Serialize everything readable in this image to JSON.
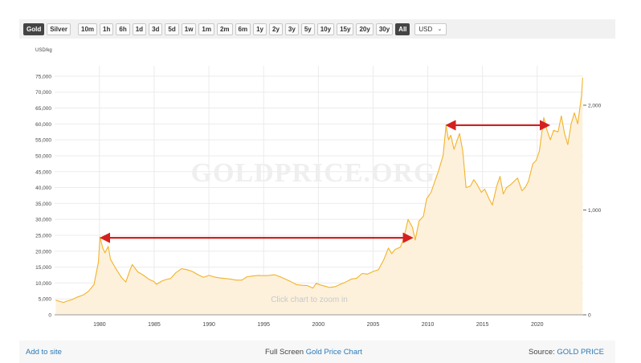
{
  "toolbar": {
    "metals": [
      {
        "label": "Gold",
        "active": true
      },
      {
        "label": "Silver",
        "active": false
      }
    ],
    "ranges": [
      {
        "label": "10m",
        "active": false
      },
      {
        "label": "1h",
        "active": false
      },
      {
        "label": "6h",
        "active": false
      },
      {
        "label": "1d",
        "active": false
      },
      {
        "label": "3d",
        "active": false
      },
      {
        "label": "5d",
        "active": false
      },
      {
        "label": "1w",
        "active": false
      },
      {
        "label": "1m",
        "active": false
      },
      {
        "label": "2m",
        "active": false
      },
      {
        "label": "6m",
        "active": false
      },
      {
        "label": "1y",
        "active": false
      },
      {
        "label": "2y",
        "active": false
      },
      {
        "label": "3y",
        "active": false
      },
      {
        "label": "5y",
        "active": false
      },
      {
        "label": "10y",
        "active": false
      },
      {
        "label": "15y",
        "active": false
      },
      {
        "label": "20y",
        "active": false
      },
      {
        "label": "30y",
        "active": false
      },
      {
        "label": "All",
        "active": true
      }
    ],
    "currency": "USD"
  },
  "chart_data": {
    "type": "area",
    "title": "",
    "ylabel": "USD/kg",
    "xlim": [
      1975.9,
      2024.2
    ],
    "ylim": [
      0,
      77000
    ],
    "y_ticks": [
      0,
      5000,
      10000,
      15000,
      20000,
      25000,
      30000,
      35000,
      40000,
      45000,
      50000,
      55000,
      60000,
      65000,
      70000,
      75000
    ],
    "y_tick_labels": [
      "0",
      "5,000",
      "10,000",
      "15,000",
      "20,000",
      "25,000",
      "30,000",
      "35,000",
      "40,000",
      "45,000",
      "50,000",
      "55,000",
      "60,000",
      "65,000",
      "70,000",
      "75,000"
    ],
    "x_ticks": [
      1980,
      1985,
      1990,
      1995,
      2000,
      2005,
      2010,
      2015,
      2020
    ],
    "x_tick_labels": [
      "1980",
      "1985",
      "1990",
      "1995",
      "2000",
      "2005",
      "2010",
      "2015",
      "2020"
    ],
    "y2_ticks": [
      0,
      1000,
      2000
    ],
    "y2_tick_labels": [
      "0",
      "1,000",
      "2,000"
    ],
    "grid": true,
    "watermark": "GOLDPRICE.ORG",
    "hint": "Click chart to zoom in",
    "series": [
      {
        "color": "#f2b32a",
        "fill": "#fdf1dc",
        "points": [
          [
            1976.0,
            4600
          ],
          [
            1976.7,
            3900
          ],
          [
            1977.0,
            4300
          ],
          [
            1977.5,
            4800
          ],
          [
            1978.0,
            5600
          ],
          [
            1978.5,
            6200
          ],
          [
            1979.0,
            7400
          ],
          [
            1979.5,
            9500
          ],
          [
            1979.9,
            16500
          ],
          [
            1980.05,
            24500
          ],
          [
            1980.3,
            21000
          ],
          [
            1980.5,
            19500
          ],
          [
            1980.8,
            21500
          ],
          [
            1981.0,
            17500
          ],
          [
            1981.5,
            14500
          ],
          [
            1982.0,
            11800
          ],
          [
            1982.4,
            10300
          ],
          [
            1982.8,
            14200
          ],
          [
            1983.0,
            15800
          ],
          [
            1983.5,
            13500
          ],
          [
            1984.0,
            12500
          ],
          [
            1984.5,
            11200
          ],
          [
            1985.0,
            10400
          ],
          [
            1985.2,
            9600
          ],
          [
            1985.7,
            10600
          ],
          [
            1986.0,
            11000
          ],
          [
            1986.5,
            11400
          ],
          [
            1987.0,
            13300
          ],
          [
            1987.5,
            14500
          ],
          [
            1988.0,
            14200
          ],
          [
            1988.5,
            13600
          ],
          [
            1989.0,
            12600
          ],
          [
            1989.5,
            11800
          ],
          [
            1990.0,
            12400
          ],
          [
            1990.5,
            11900
          ],
          [
            1991.0,
            11600
          ],
          [
            1991.5,
            11400
          ],
          [
            1992.0,
            11200
          ],
          [
            1992.5,
            10900
          ],
          [
            1993.0,
            10900
          ],
          [
            1993.5,
            12000
          ],
          [
            1994.0,
            12200
          ],
          [
            1994.5,
            12400
          ],
          [
            1995.0,
            12300
          ],
          [
            1995.5,
            12400
          ],
          [
            1996.0,
            12600
          ],
          [
            1996.5,
            12000
          ],
          [
            1997.0,
            11200
          ],
          [
            1997.5,
            10400
          ],
          [
            1998.0,
            9500
          ],
          [
            1998.5,
            9300
          ],
          [
            1999.0,
            9200
          ],
          [
            1999.5,
            8400
          ],
          [
            1999.8,
            9900
          ],
          [
            2000.2,
            9400
          ],
          [
            2000.7,
            8900
          ],
          [
            2001.0,
            8600
          ],
          [
            2001.5,
            8800
          ],
          [
            2002.0,
            9600
          ],
          [
            2002.5,
            10300
          ],
          [
            2003.0,
            11200
          ],
          [
            2003.5,
            11500
          ],
          [
            2004.0,
            13000
          ],
          [
            2004.5,
            12800
          ],
          [
            2005.0,
            13600
          ],
          [
            2005.5,
            14200
          ],
          [
            2006.0,
            17500
          ],
          [
            2006.4,
            21000
          ],
          [
            2006.7,
            19200
          ],
          [
            2007.0,
            20500
          ],
          [
            2007.5,
            21300
          ],
          [
            2007.8,
            24000
          ],
          [
            2008.2,
            30000
          ],
          [
            2008.6,
            27500
          ],
          [
            2008.85,
            23500
          ],
          [
            2009.2,
            29500
          ],
          [
            2009.6,
            31000
          ],
          [
            2009.9,
            36500
          ],
          [
            2010.3,
            38500
          ],
          [
            2010.7,
            42500
          ],
          [
            2011.0,
            45500
          ],
          [
            2011.4,
            50000
          ],
          [
            2011.67,
            59500
          ],
          [
            2011.9,
            55000
          ],
          [
            2012.1,
            56500
          ],
          [
            2012.4,
            52000
          ],
          [
            2012.7,
            55000
          ],
          [
            2012.9,
            57000
          ],
          [
            2013.2,
            51500
          ],
          [
            2013.5,
            40000
          ],
          [
            2013.9,
            40500
          ],
          [
            2014.2,
            42500
          ],
          [
            2014.5,
            41000
          ],
          [
            2014.9,
            38500
          ],
          [
            2015.2,
            39500
          ],
          [
            2015.6,
            36500
          ],
          [
            2015.9,
            34500
          ],
          [
            2016.3,
            40500
          ],
          [
            2016.6,
            43500
          ],
          [
            2016.9,
            38000
          ],
          [
            2017.2,
            40000
          ],
          [
            2017.6,
            41000
          ],
          [
            2017.9,
            42000
          ],
          [
            2018.2,
            43000
          ],
          [
            2018.6,
            39000
          ],
          [
            2018.9,
            40000
          ],
          [
            2019.2,
            42000
          ],
          [
            2019.6,
            47500
          ],
          [
            2019.9,
            48500
          ],
          [
            2020.2,
            51500
          ],
          [
            2020.6,
            62000
          ],
          [
            2020.9,
            58000
          ],
          [
            2021.2,
            55000
          ],
          [
            2021.5,
            58000
          ],
          [
            2021.9,
            57500
          ],
          [
            2022.2,
            62500
          ],
          [
            2022.5,
            57000
          ],
          [
            2022.8,
            53500
          ],
          [
            2023.1,
            60000
          ],
          [
            2023.4,
            63500
          ],
          [
            2023.7,
            60000
          ],
          [
            2023.9,
            65000
          ],
          [
            2024.05,
            69000
          ],
          [
            2024.15,
            74500
          ]
        ]
      }
    ],
    "annotations": [
      {
        "type": "double-arrow",
        "color": "#d62020",
        "from": [
          1980.2,
          24200
        ],
        "to": [
          2008.5,
          24200
        ]
      },
      {
        "type": "double-arrow",
        "color": "#d62020",
        "from": [
          2011.8,
          59600
        ],
        "to": [
          2021.0,
          59600
        ]
      }
    ]
  },
  "footer": {
    "add_to_site": "Add to site",
    "full_screen_prefix": "Full Screen",
    "full_screen_link": "Gold Price Chart",
    "source_prefix": "Source:",
    "source_link": "GOLD PRICE"
  }
}
